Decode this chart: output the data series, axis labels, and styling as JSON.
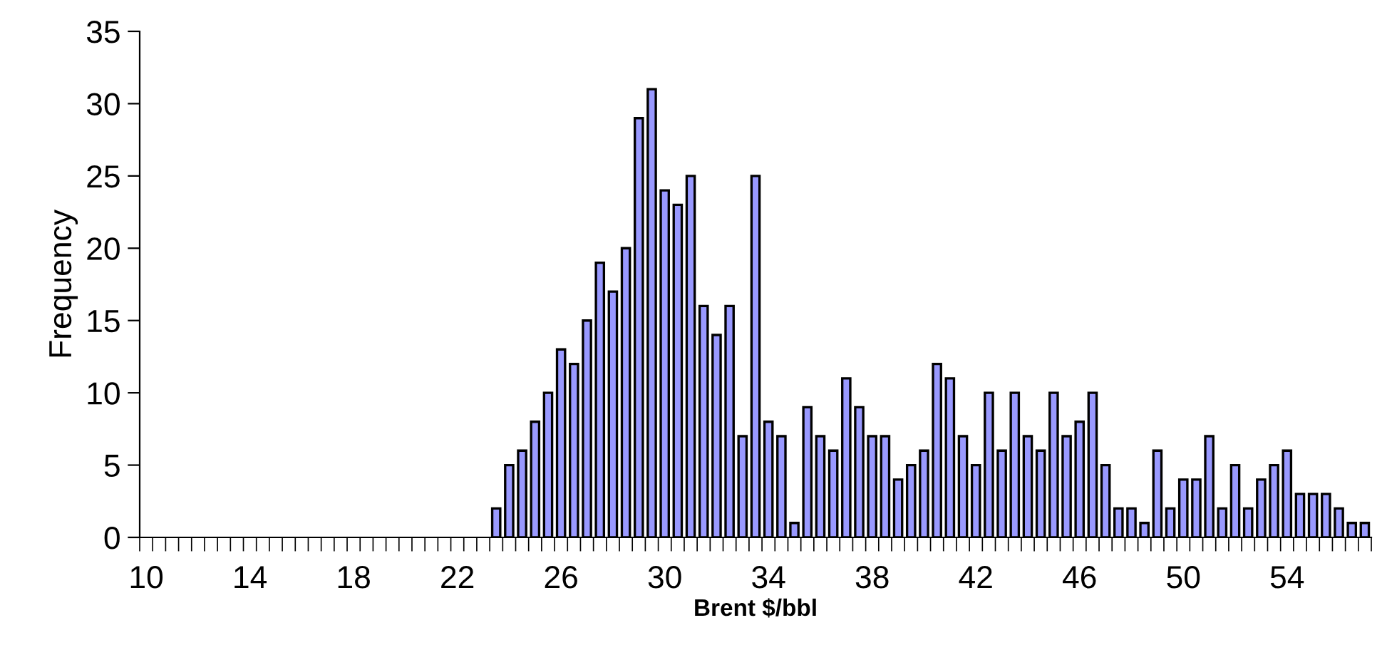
{
  "chart_data": {
    "type": "bar",
    "xlabel": "Brent $/bbl",
    "ylabel": "Frequency",
    "categories": [
      "10",
      null,
      null,
      null,
      null,
      null,
      null,
      null,
      "14",
      null,
      null,
      null,
      null,
      null,
      null,
      null,
      "18",
      null,
      null,
      null,
      null,
      null,
      null,
      null,
      "22",
      null,
      null,
      null,
      null,
      null,
      null,
      null,
      "26",
      null,
      null,
      null,
      null,
      null,
      null,
      null,
      "30",
      null,
      null,
      null,
      null,
      null,
      null,
      null,
      "34",
      null,
      null,
      null,
      null,
      null,
      null,
      null,
      "38",
      null,
      null,
      null,
      null,
      null,
      null,
      null,
      "42",
      null,
      null,
      null,
      null,
      null,
      null,
      null,
      "46",
      null,
      null,
      null,
      null,
      null,
      null,
      null,
      "50",
      null,
      null,
      null,
      null,
      null,
      null,
      null,
      "54",
      null,
      null,
      null,
      null,
      null,
      null
    ],
    "values": [
      null,
      null,
      null,
      null,
      null,
      null,
      null,
      null,
      null,
      null,
      null,
      null,
      null,
      null,
      null,
      null,
      null,
      null,
      null,
      null,
      null,
      null,
      null,
      null,
      null,
      null,
      null,
      2,
      5,
      6,
      8,
      10,
      13,
      12,
      15,
      19,
      17,
      20,
      29,
      31,
      24,
      23,
      25,
      16,
      14,
      16,
      7,
      25,
      8,
      7,
      1,
      9,
      7,
      6,
      11,
      9,
      7,
      7,
      4,
      5,
      6,
      12,
      11,
      7,
      5,
      10,
      6,
      10,
      7,
      6,
      10,
      7,
      8,
      10,
      5,
      2,
      2,
      1,
      6,
      2,
      4,
      4,
      7,
      2,
      5,
      2,
      4,
      5,
      6,
      3,
      3,
      3,
      2,
      1,
      1
    ],
    "color": "#9999ff",
    "ylim": [
      0,
      35
    ],
    "yticks": [
      0,
      5,
      10,
      15,
      20,
      25,
      30,
      35
    ],
    "grid": false,
    "legend": false
  }
}
